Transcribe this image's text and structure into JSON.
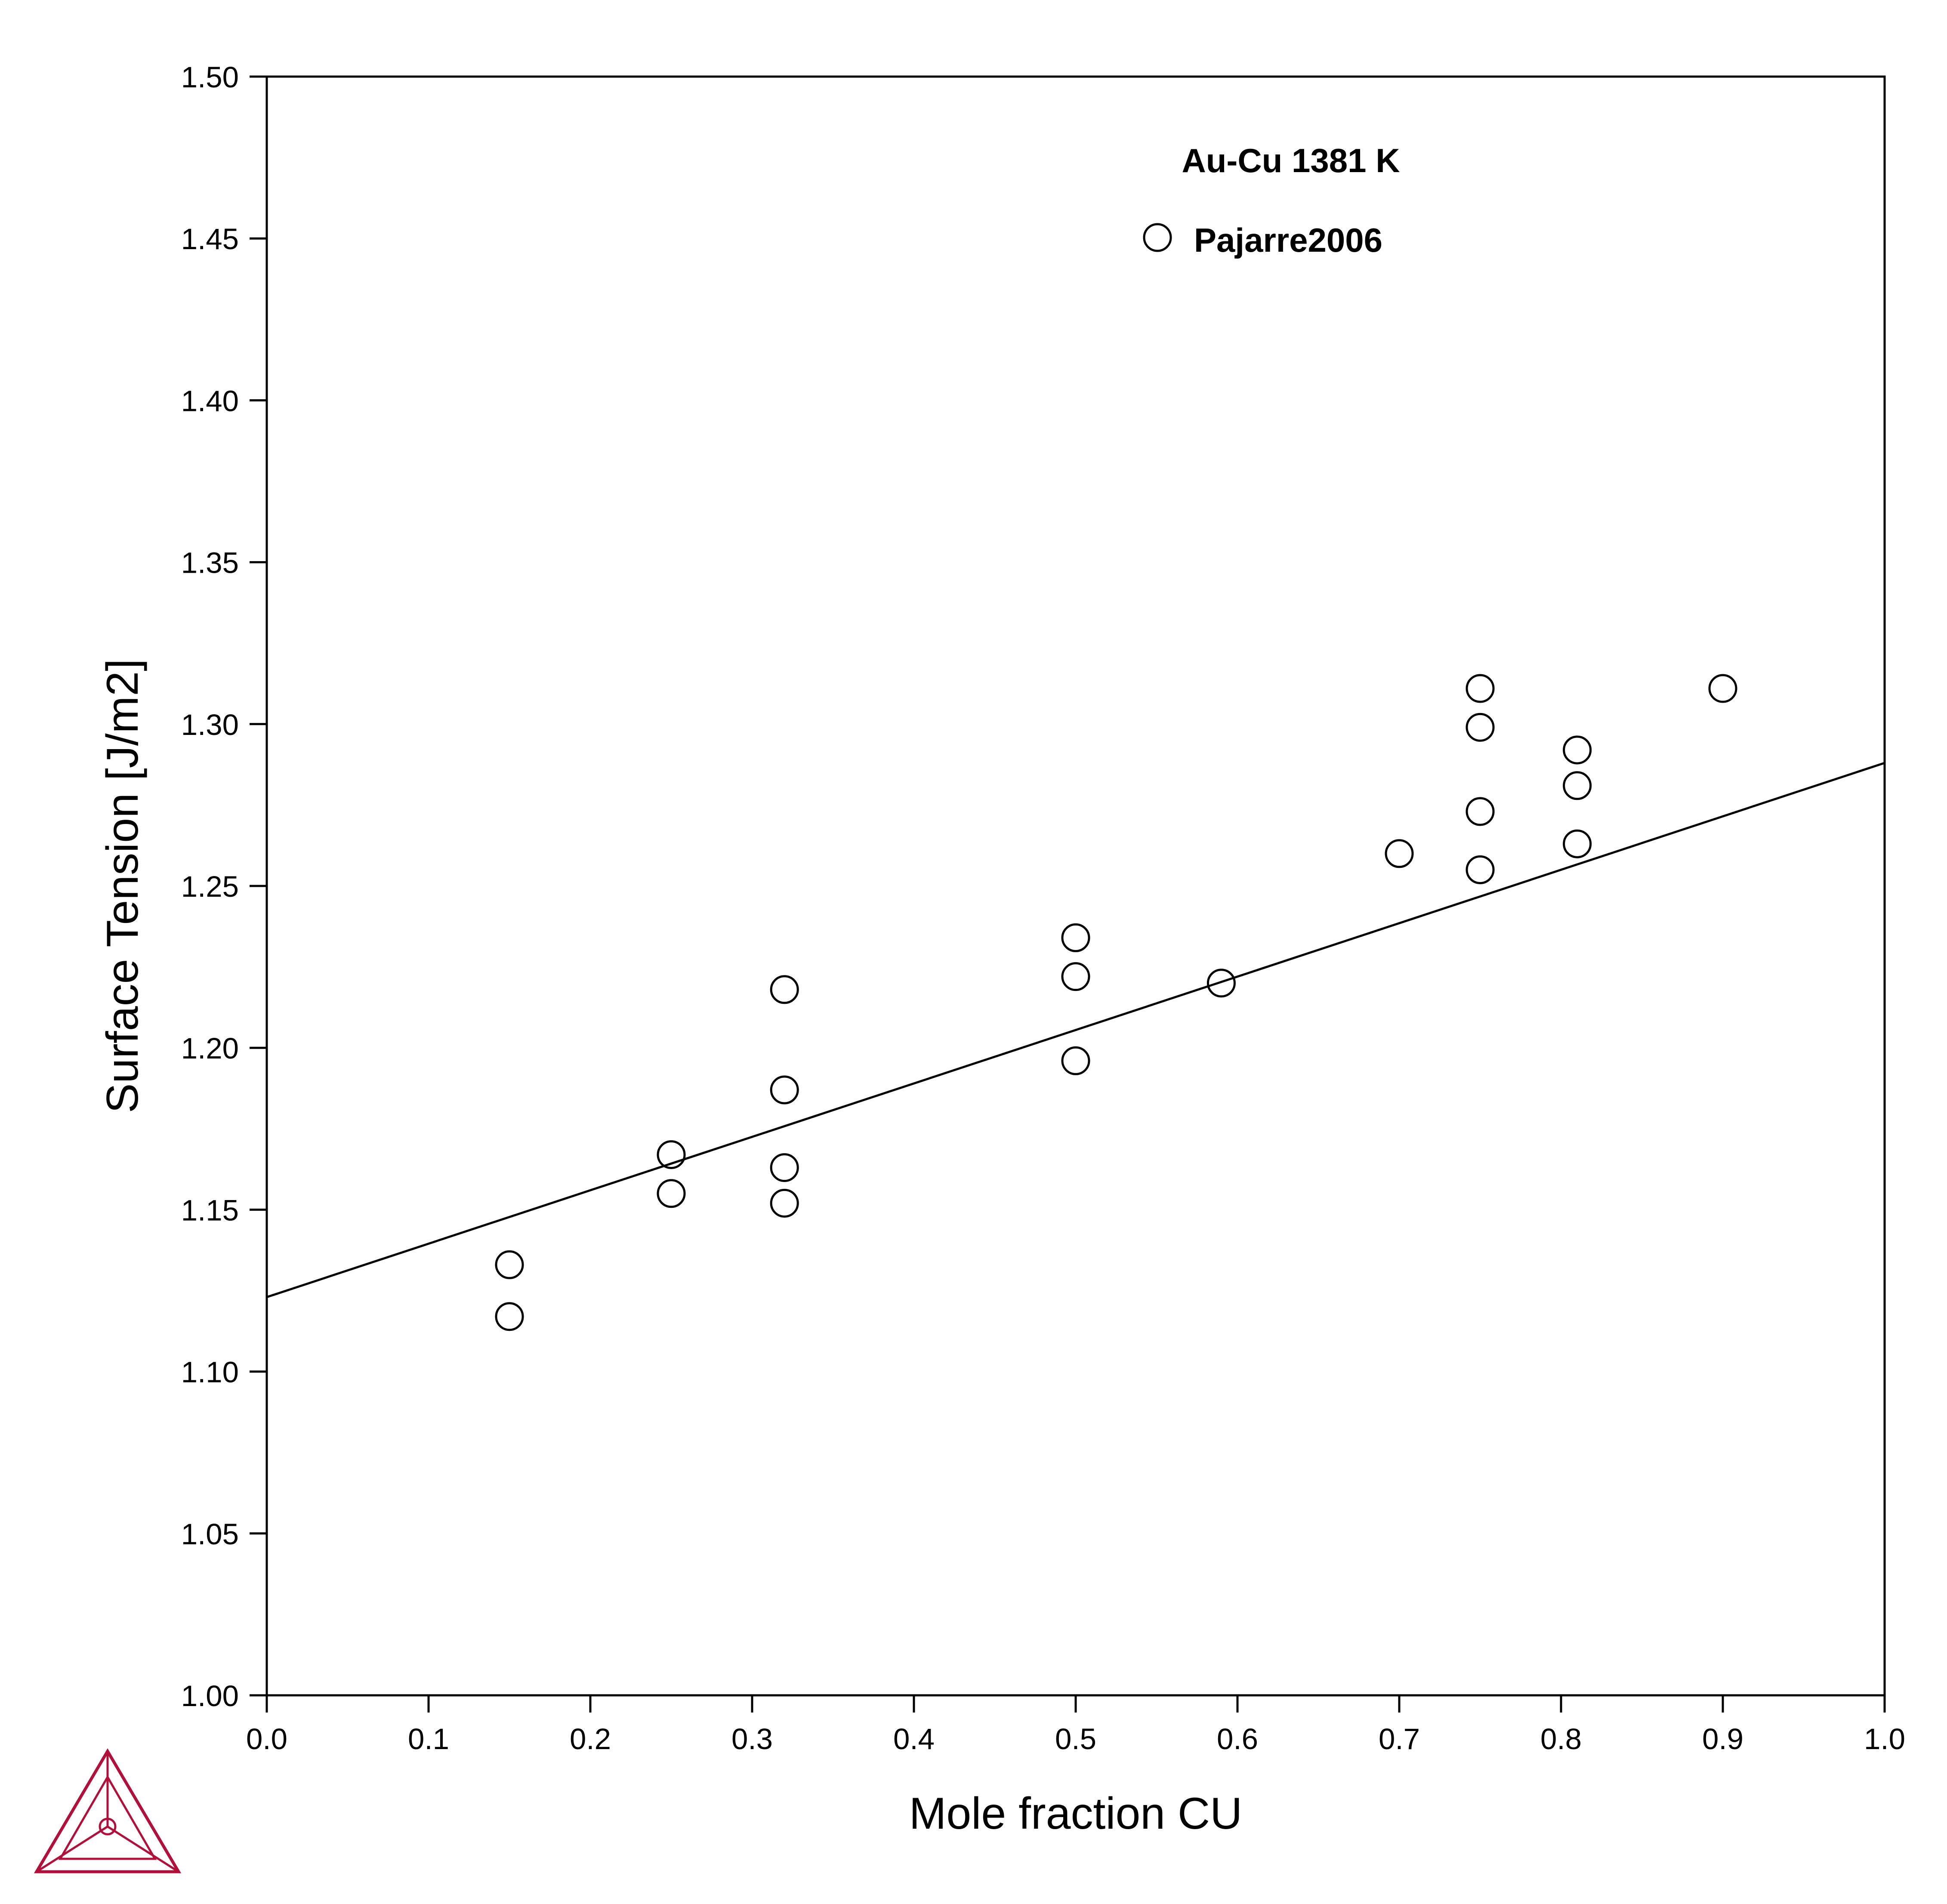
{
  "chart_data": {
    "type": "scatter",
    "title": "",
    "annotation": "Au-Cu 1381 K",
    "xlabel": "Mole fraction CU",
    "ylabel": "Surface Tension [J/m2]",
    "xlim": [
      0.0,
      1.0
    ],
    "ylim": [
      1.0,
      1.5
    ],
    "x_ticks": [
      "0.0",
      "0.1",
      "0.2",
      "0.3",
      "0.4",
      "0.5",
      "0.6",
      "0.7",
      "0.8",
      "0.9",
      "1.0"
    ],
    "y_ticks": [
      "1.00",
      "1.05",
      "1.10",
      "1.15",
      "1.20",
      "1.25",
      "1.30",
      "1.35",
      "1.40",
      "1.45",
      "1.50"
    ],
    "grid": false,
    "legend_position": "top-center",
    "series": [
      {
        "name": "Pajarre2006",
        "kind": "scatter",
        "marker": "open-circle",
        "points": [
          [
            0.15,
            1.133
          ],
          [
            0.15,
            1.117
          ],
          [
            0.25,
            1.167
          ],
          [
            0.25,
            1.155
          ],
          [
            0.32,
            1.218
          ],
          [
            0.32,
            1.187
          ],
          [
            0.32,
            1.163
          ],
          [
            0.32,
            1.152
          ],
          [
            0.5,
            1.234
          ],
          [
            0.5,
            1.222
          ],
          [
            0.5,
            1.196
          ],
          [
            0.59,
            1.22
          ],
          [
            0.7,
            1.26
          ],
          [
            0.75,
            1.311
          ],
          [
            0.75,
            1.299
          ],
          [
            0.75,
            1.273
          ],
          [
            0.75,
            1.255
          ],
          [
            0.81,
            1.292
          ],
          [
            0.81,
            1.281
          ],
          [
            0.81,
            1.263
          ],
          [
            0.9,
            1.311
          ]
        ]
      },
      {
        "kind": "line",
        "points": [
          [
            0.0,
            1.123
          ],
          [
            1.0,
            1.288
          ]
        ]
      }
    ],
    "colors": {
      "axes": "#000000",
      "markers": "#000000",
      "line": "#000000",
      "logo": "#b0103a"
    }
  },
  "logo": {
    "icon": "thermo-calc-triangle-logo"
  }
}
